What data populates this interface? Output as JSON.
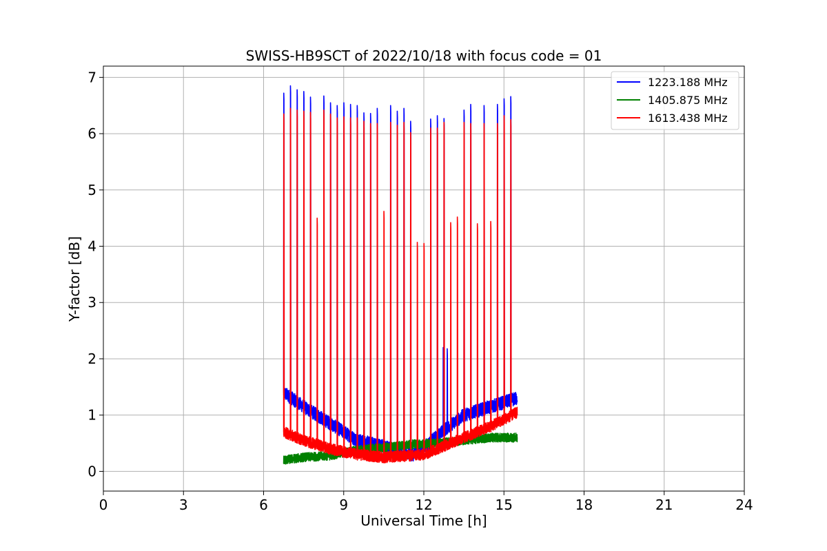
{
  "chart_data": {
    "type": "line",
    "title": "SWISS-HB9SCT of 2022/10/18 with focus code = 01",
    "xlabel": "Universal Time [h]",
    "ylabel": "Y-factor [dB]",
    "xlim": [
      0,
      24
    ],
    "ylim": [
      -0.35,
      7.2
    ],
    "xticks": [
      0,
      3,
      6,
      9,
      12,
      15,
      18,
      21,
      24
    ],
    "yticks": [
      0,
      1,
      2,
      3,
      4,
      5,
      6,
      7
    ],
    "grid": true,
    "legend_position": "top-right",
    "x_range_observed": [
      6.75,
      15.5
    ],
    "series": [
      {
        "name": "1223.188 MHz",
        "color": "#0000ff",
        "baseline": [
          [
            6.75,
            1.4
          ],
          [
            7.5,
            1.15
          ],
          [
            8.5,
            0.85
          ],
          [
            9.5,
            0.55
          ],
          [
            10.5,
            0.45
          ],
          [
            11.0,
            0.35
          ],
          [
            11.6,
            0.3
          ],
          [
            12.2,
            0.5
          ],
          [
            12.8,
            0.75
          ],
          [
            13.5,
            1.0
          ],
          [
            14.5,
            1.15
          ],
          [
            15.5,
            1.3
          ]
        ],
        "noise": 0.12,
        "peaks": [
          [
            6.75,
            6.72
          ],
          [
            7.0,
            6.85
          ],
          [
            7.25,
            6.78
          ],
          [
            7.5,
            6.75
          ],
          [
            7.75,
            6.65
          ],
          [
            8.25,
            6.67
          ],
          [
            8.5,
            6.55
          ],
          [
            8.75,
            6.5
          ],
          [
            9.0,
            6.55
          ],
          [
            9.25,
            6.52
          ],
          [
            9.5,
            6.5
          ],
          [
            9.75,
            6.37
          ],
          [
            10.0,
            6.36
          ],
          [
            10.25,
            6.45
          ],
          [
            10.75,
            6.5
          ],
          [
            11.0,
            6.4
          ],
          [
            11.25,
            6.45
          ],
          [
            11.5,
            6.22
          ],
          [
            12.25,
            6.26
          ],
          [
            12.5,
            6.32
          ],
          [
            12.75,
            6.27
          ],
          [
            13.5,
            6.42
          ],
          [
            13.75,
            6.52
          ],
          [
            14.25,
            6.5
          ],
          [
            14.75,
            6.52
          ],
          [
            15.0,
            6.62
          ],
          [
            15.25,
            6.66
          ],
          [
            12.72,
            2.2
          ],
          [
            12.87,
            2.18
          ]
        ]
      },
      {
        "name": "1405.875 MHz",
        "color": "#008000",
        "baseline": [
          [
            6.75,
            0.2
          ],
          [
            7.5,
            0.25
          ],
          [
            8.5,
            0.28
          ],
          [
            9.5,
            0.38
          ],
          [
            10.5,
            0.42
          ],
          [
            11.5,
            0.48
          ],
          [
            12.5,
            0.5
          ],
          [
            13.5,
            0.55
          ],
          [
            14.5,
            0.6
          ],
          [
            15.5,
            0.6
          ]
        ],
        "noise": 0.08,
        "peaks": []
      },
      {
        "name": "1613.438 MHz",
        "color": "#ff0000",
        "baseline": [
          [
            6.75,
            0.7
          ],
          [
            7.5,
            0.55
          ],
          [
            8.5,
            0.4
          ],
          [
            9.5,
            0.3
          ],
          [
            10.5,
            0.25
          ],
          [
            11.5,
            0.28
          ],
          [
            12.0,
            0.3
          ],
          [
            12.5,
            0.4
          ],
          [
            13.5,
            0.6
          ],
          [
            14.5,
            0.8
          ],
          [
            15.5,
            1.05
          ]
        ],
        "noise": 0.1,
        "peaks": [
          [
            6.75,
            6.35
          ],
          [
            7.0,
            6.45
          ],
          [
            7.25,
            6.42
          ],
          [
            7.5,
            6.4
          ],
          [
            7.75,
            6.38
          ],
          [
            8.0,
            4.5
          ],
          [
            8.25,
            6.42
          ],
          [
            8.5,
            6.35
          ],
          [
            8.75,
            6.28
          ],
          [
            9.0,
            6.3
          ],
          [
            9.25,
            6.28
          ],
          [
            9.5,
            6.28
          ],
          [
            9.75,
            6.22
          ],
          [
            10.0,
            6.18
          ],
          [
            10.25,
            6.18
          ],
          [
            10.5,
            4.62
          ],
          [
            10.75,
            6.2
          ],
          [
            11.0,
            6.15
          ],
          [
            11.25,
            6.2
          ],
          [
            11.5,
            6.02
          ],
          [
            11.75,
            4.07
          ],
          [
            12.0,
            4.05
          ],
          [
            12.25,
            6.1
          ],
          [
            12.5,
            6.1
          ],
          [
            12.75,
            6.2
          ],
          [
            13.0,
            4.42
          ],
          [
            13.25,
            4.52
          ],
          [
            13.5,
            6.2
          ],
          [
            13.75,
            6.18
          ],
          [
            14.0,
            4.4
          ],
          [
            14.25,
            6.18
          ],
          [
            14.5,
            4.44
          ],
          [
            14.75,
            6.18
          ],
          [
            15.0,
            6.32
          ],
          [
            15.25,
            6.25
          ]
        ]
      }
    ]
  }
}
